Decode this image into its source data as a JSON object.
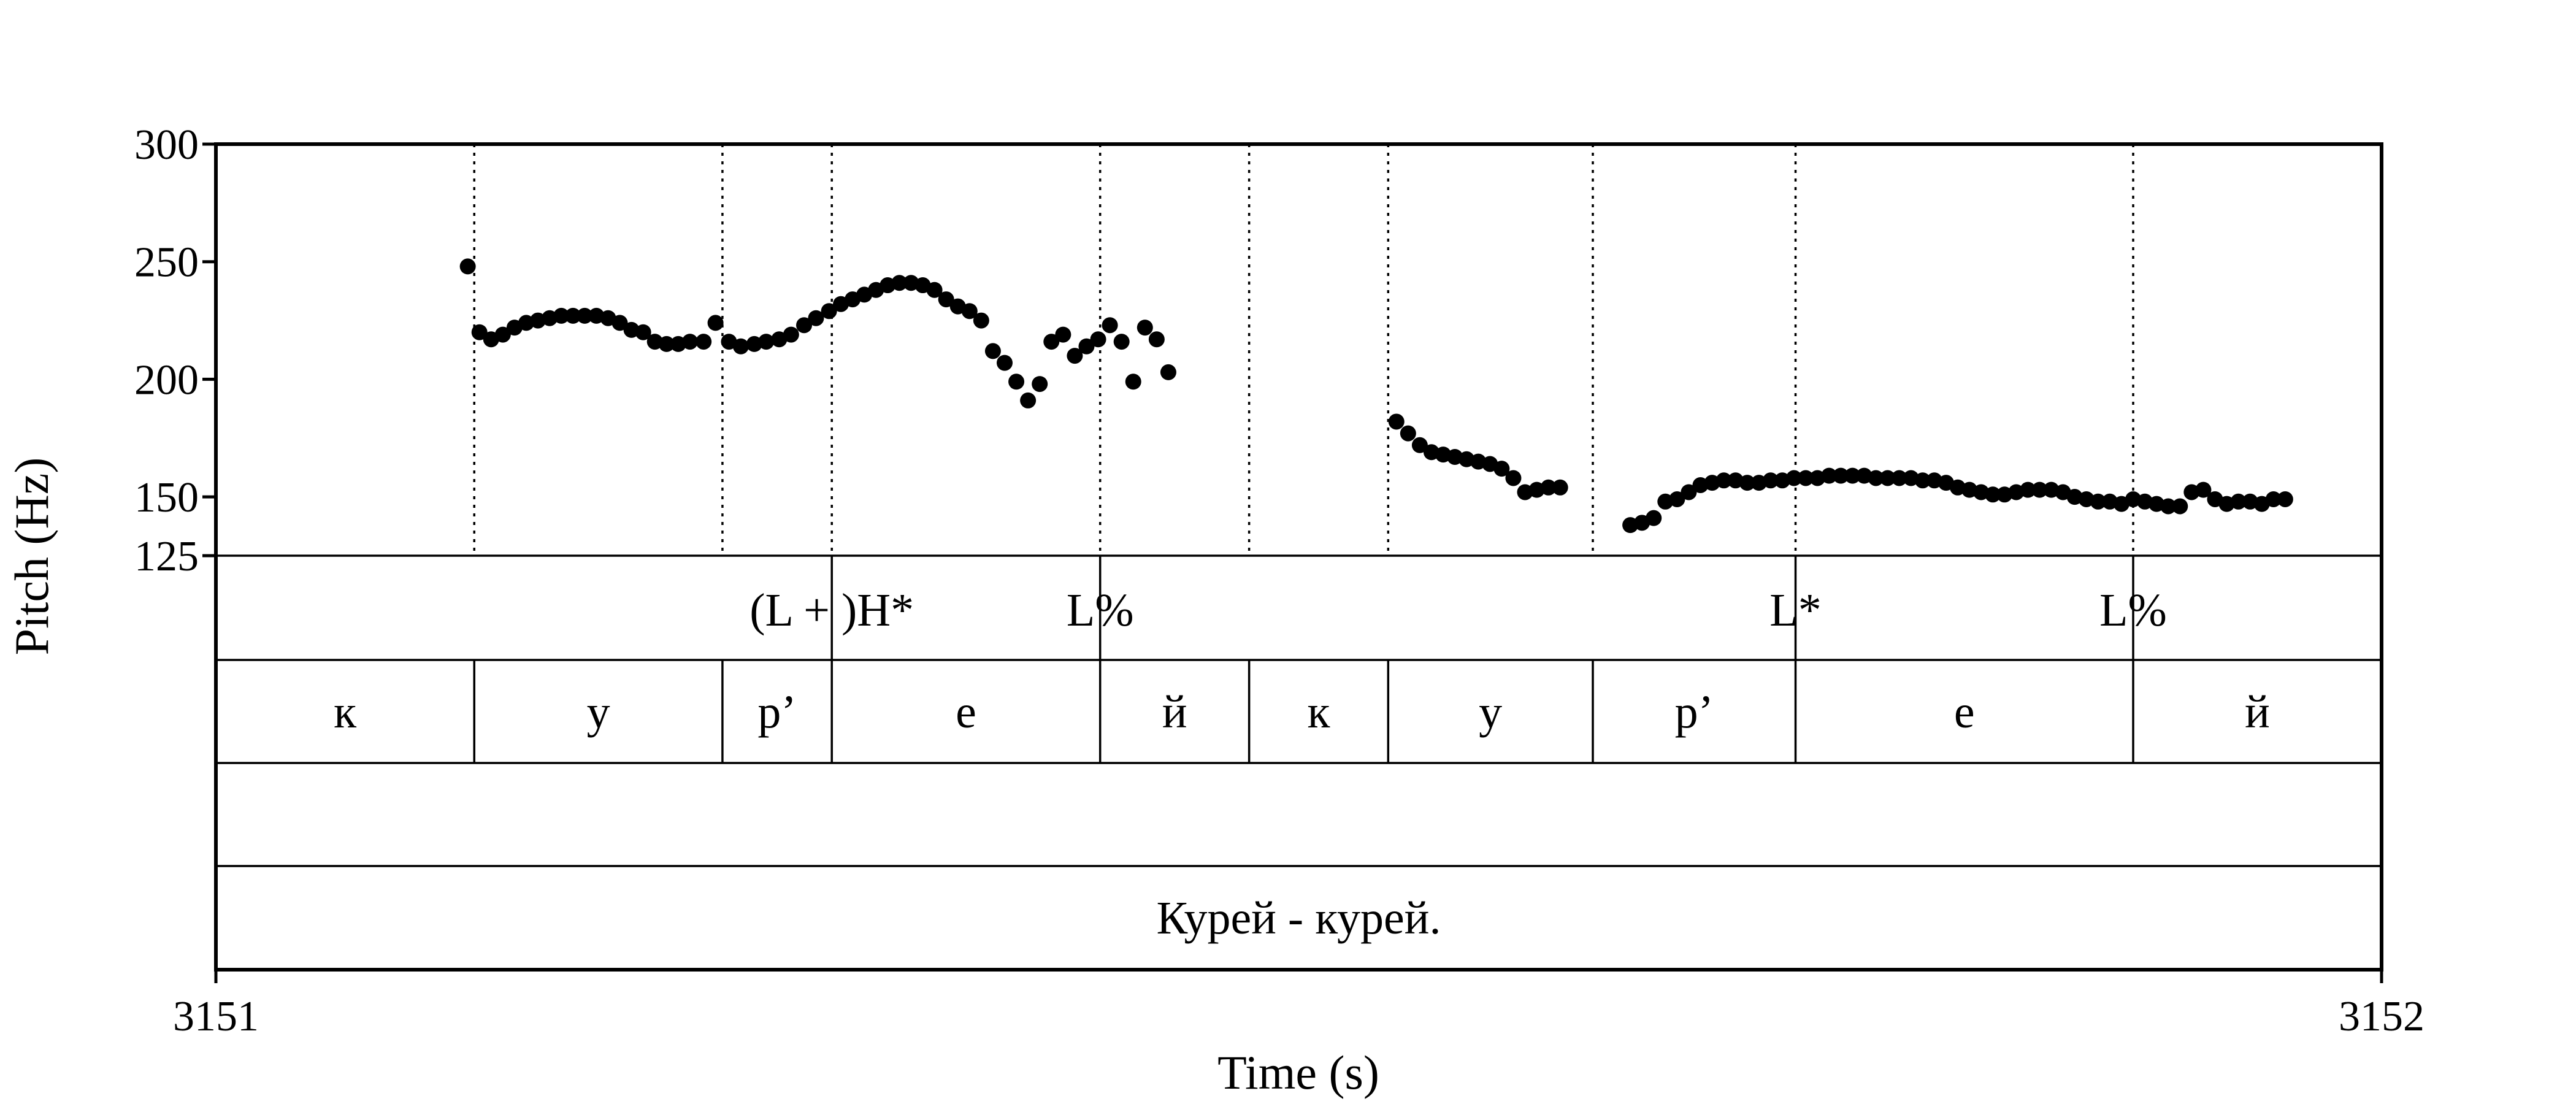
{
  "chart_data": {
    "type": "scatter",
    "xlabel": "Time (s)",
    "ylabel": "Pitch (Hz)",
    "xlim": [
      3151,
      3152
    ],
    "ylim": [
      125,
      300
    ],
    "x_ticks": [
      "3151",
      "3152"
    ],
    "y_ticks": [
      {
        "value": 300,
        "label": "300"
      },
      {
        "value": 250,
        "label": "250"
      },
      {
        "value": 200,
        "label": "200"
      },
      {
        "value": 150,
        "label": "150"
      },
      {
        "value": 125,
        "label": "125"
      }
    ],
    "boundaries": [
      3151.1193,
      3151.2339,
      3151.2844,
      3151.4083,
      3151.4771,
      3151.5413,
      3151.6358,
      3151.7294,
      3151.8853
    ],
    "tones": [
      {
        "t": 3151.2844,
        "label": "(L + )H*",
        "anchor": "middle"
      },
      {
        "t": 3151.4083,
        "label": "L%",
        "anchor": "middle"
      },
      {
        "t": 3151.7294,
        "label": "L*",
        "anchor": "middle"
      },
      {
        "t": 3151.8853,
        "label": "L%",
        "anchor": "middle"
      }
    ],
    "segments": [
      {
        "start": 3151.0,
        "end": 3151.1193,
        "label": "к"
      },
      {
        "start": 3151.1193,
        "end": 3151.2339,
        "label": "у"
      },
      {
        "start": 3151.2339,
        "end": 3151.2844,
        "label": "р’"
      },
      {
        "start": 3151.2844,
        "end": 3151.4083,
        "label": "е"
      },
      {
        "start": 3151.4083,
        "end": 3151.4771,
        "label": "й"
      },
      {
        "start": 3151.4771,
        "end": 3151.5413,
        "label": "к"
      },
      {
        "start": 3151.5413,
        "end": 3151.6358,
        "label": "у"
      },
      {
        "start": 3151.6358,
        "end": 3151.7294,
        "label": "р’"
      },
      {
        "start": 3151.7294,
        "end": 3151.8853,
        "label": "е"
      },
      {
        "start": 3151.8853,
        "end": 3152.0,
        "label": "й"
      }
    ],
    "empty_tier": "",
    "sentence": "Курей - курей.",
    "points": [
      [
        3151.1163,
        248
      ],
      [
        3151.1217,
        220
      ],
      [
        3151.1271,
        217
      ],
      [
        3151.1325,
        219
      ],
      [
        3151.1379,
        222
      ],
      [
        3151.1433,
        224
      ],
      [
        3151.1487,
        225
      ],
      [
        3151.1541,
        226
      ],
      [
        3151.1595,
        227
      ],
      [
        3151.1649,
        227
      ],
      [
        3151.1703,
        227
      ],
      [
        3151.1757,
        227
      ],
      [
        3151.1811,
        226
      ],
      [
        3151.1865,
        224
      ],
      [
        3151.1919,
        221
      ],
      [
        3151.1973,
        220
      ],
      [
        3151.2027,
        216
      ],
      [
        3151.2081,
        215
      ],
      [
        3151.2135,
        215
      ],
      [
        3151.2189,
        216
      ],
      [
        3151.2252,
        216
      ],
      [
        3151.2307,
        224
      ],
      [
        3151.2369,
        216
      ],
      [
        3151.2424,
        214
      ],
      [
        3151.2486,
        215
      ],
      [
        3151.2541,
        216
      ],
      [
        3151.2601,
        217
      ],
      [
        3151.2656,
        219
      ],
      [
        3151.2716,
        223
      ],
      [
        3151.2771,
        226
      ],
      [
        3151.2831,
        229
      ],
      [
        3151.2886,
        232
      ],
      [
        3151.294,
        234
      ],
      [
        3151.2994,
        236
      ],
      [
        3151.3048,
        238
      ],
      [
        3151.3102,
        240
      ],
      [
        3151.3156,
        241
      ],
      [
        3151.321,
        241
      ],
      [
        3151.3264,
        240
      ],
      [
        3151.3318,
        238
      ],
      [
        3151.3372,
        234
      ],
      [
        3151.3426,
        231
      ],
      [
        3151.348,
        229
      ],
      [
        3151.3534,
        225
      ],
      [
        3151.3588,
        212
      ],
      [
        3151.3642,
        207
      ],
      [
        3151.3696,
        199
      ],
      [
        3151.375,
        191
      ],
      [
        3151.3804,
        198
      ],
      [
        3151.3858,
        216
      ],
      [
        3151.3912,
        219
      ],
      [
        3151.3966,
        210
      ],
      [
        3151.402,
        214
      ],
      [
        3151.4074,
        217
      ],
      [
        3151.4128,
        223
      ],
      [
        3151.4182,
        216
      ],
      [
        3151.4236,
        199
      ],
      [
        3151.429,
        222
      ],
      [
        3151.4344,
        217
      ],
      [
        3151.4398,
        203
      ],
      [
        3151.5451,
        182
      ],
      [
        3151.5505,
        177
      ],
      [
        3151.5559,
        172
      ],
      [
        3151.5613,
        169
      ],
      [
        3151.5667,
        168
      ],
      [
        3151.5721,
        167
      ],
      [
        3151.5775,
        166
      ],
      [
        3151.5829,
        165
      ],
      [
        3151.5883,
        164
      ],
      [
        3151.5937,
        162
      ],
      [
        3151.5991,
        158
      ],
      [
        3151.6045,
        152
      ],
      [
        3151.6099,
        153
      ],
      [
        3151.6153,
        154
      ],
      [
        3151.6207,
        154
      ],
      [
        3151.6531,
        138
      ],
      [
        3151.6585,
        139
      ],
      [
        3151.6639,
        141
      ],
      [
        3151.6693,
        148
      ],
      [
        3151.6747,
        149
      ],
      [
        3151.6801,
        152
      ],
      [
        3151.6855,
        155
      ],
      [
        3151.6909,
        156
      ],
      [
        3151.6963,
        157
      ],
      [
        3151.7017,
        157
      ],
      [
        3151.7071,
        156
      ],
      [
        3151.7125,
        156
      ],
      [
        3151.7179,
        157
      ],
      [
        3151.7233,
        157
      ],
      [
        3151.7287,
        158
      ],
      [
        3151.7341,
        158
      ],
      [
        3151.7395,
        158
      ],
      [
        3151.7449,
        159
      ],
      [
        3151.7503,
        159
      ],
      [
        3151.7557,
        159
      ],
      [
        3151.7611,
        159
      ],
      [
        3151.7665,
        158
      ],
      [
        3151.7719,
        158
      ],
      [
        3151.7773,
        158
      ],
      [
        3151.7827,
        158
      ],
      [
        3151.7881,
        157
      ],
      [
        3151.7935,
        157
      ],
      [
        3151.7989,
        156
      ],
      [
        3151.8043,
        154
      ],
      [
        3151.8097,
        153
      ],
      [
        3151.8151,
        152
      ],
      [
        3151.8205,
        151
      ],
      [
        3151.8259,
        151
      ],
      [
        3151.8313,
        152
      ],
      [
        3151.8367,
        153
      ],
      [
        3151.8421,
        153
      ],
      [
        3151.8475,
        153
      ],
      [
        3151.8529,
        152
      ],
      [
        3151.8583,
        150
      ],
      [
        3151.8637,
        149
      ],
      [
        3151.8691,
        148
      ],
      [
        3151.8745,
        148
      ],
      [
        3151.8799,
        147
      ],
      [
        3151.8853,
        149
      ],
      [
        3151.8907,
        148
      ],
      [
        3151.8961,
        147
      ],
      [
        3151.9015,
        146
      ],
      [
        3151.9069,
        146
      ],
      [
        3151.9123,
        152
      ],
      [
        3151.9177,
        153
      ],
      [
        3151.9231,
        149
      ],
      [
        3151.9285,
        147
      ],
      [
        3151.9339,
        148
      ],
      [
        3151.9393,
        148
      ],
      [
        3151.9447,
        147
      ],
      [
        3151.9501,
        149
      ],
      [
        3151.9555,
        149
      ]
    ]
  }
}
